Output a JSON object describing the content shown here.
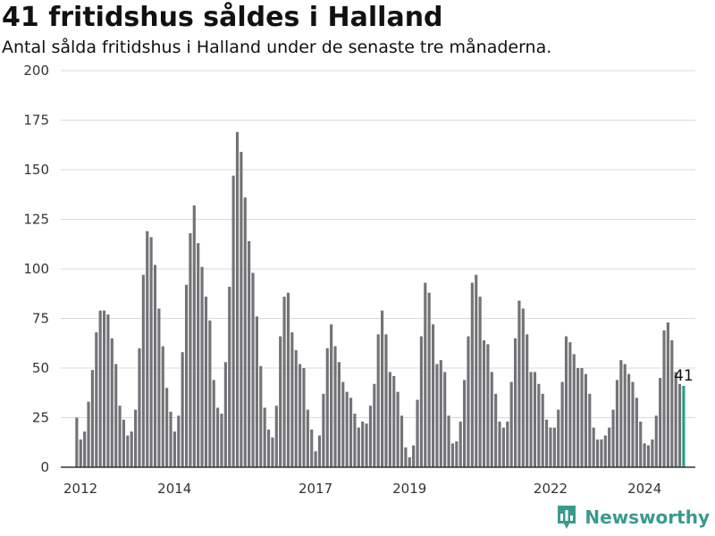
{
  "chart_data": {
    "type": "bar",
    "title": "41 fritidshus såldes i Halland",
    "subtitle": "Antal sålda fritidshus i Halland under de senaste tre månaderna.",
    "ylim": [
      0,
      200
    ],
    "yticks": [
      0,
      25,
      50,
      75,
      100,
      125,
      150,
      175,
      200
    ],
    "xticks": [
      "2012",
      "2014",
      "2017",
      "2019",
      "2022",
      "2024"
    ],
    "xlim": [
      2011.58,
      2025.08
    ],
    "x_start": 2011.92,
    "x_step": 0.0833,
    "grid": true,
    "bar_color": "#737277",
    "highlight_color": "#2a9d8f",
    "highlight_label": "41",
    "values": [
      25,
      14,
      18,
      33,
      49,
      68,
      79,
      79,
      77,
      65,
      52,
      31,
      24,
      16,
      18,
      29,
      60,
      97,
      119,
      116,
      102,
      80,
      61,
      40,
      28,
      18,
      26,
      58,
      92,
      118,
      132,
      113,
      101,
      86,
      74,
      44,
      30,
      27,
      53,
      91,
      147,
      169,
      159,
      136,
      114,
      98,
      76,
      51,
      30,
      19,
      15,
      31,
      66,
      86,
      88,
      68,
      59,
      52,
      50,
      29,
      19,
      8,
      16,
      37,
      60,
      72,
      61,
      53,
      43,
      38,
      35,
      27,
      20,
      23,
      22,
      31,
      42,
      67,
      79,
      67,
      48,
      46,
      38,
      26,
      10,
      5,
      11,
      34,
      66,
      93,
      88,
      72,
      52,
      54,
      48,
      26,
      12,
      13,
      23,
      44,
      66,
      93,
      97,
      86,
      64,
      62,
      48,
      37,
      23,
      20,
      23,
      43,
      65,
      84,
      80,
      67,
      48,
      48,
      42,
      37,
      24,
      20,
      20,
      29,
      43,
      66,
      63,
      57,
      50,
      50,
      47,
      37,
      20,
      14,
      14,
      16,
      20,
      29,
      44,
      54,
      52,
      47,
      43,
      35,
      23,
      12,
      11,
      14,
      26,
      45,
      69,
      73,
      64,
      48,
      42,
      41
    ]
  },
  "brand": {
    "name": "Newsworthy",
    "color": "#3a9a8c"
  }
}
